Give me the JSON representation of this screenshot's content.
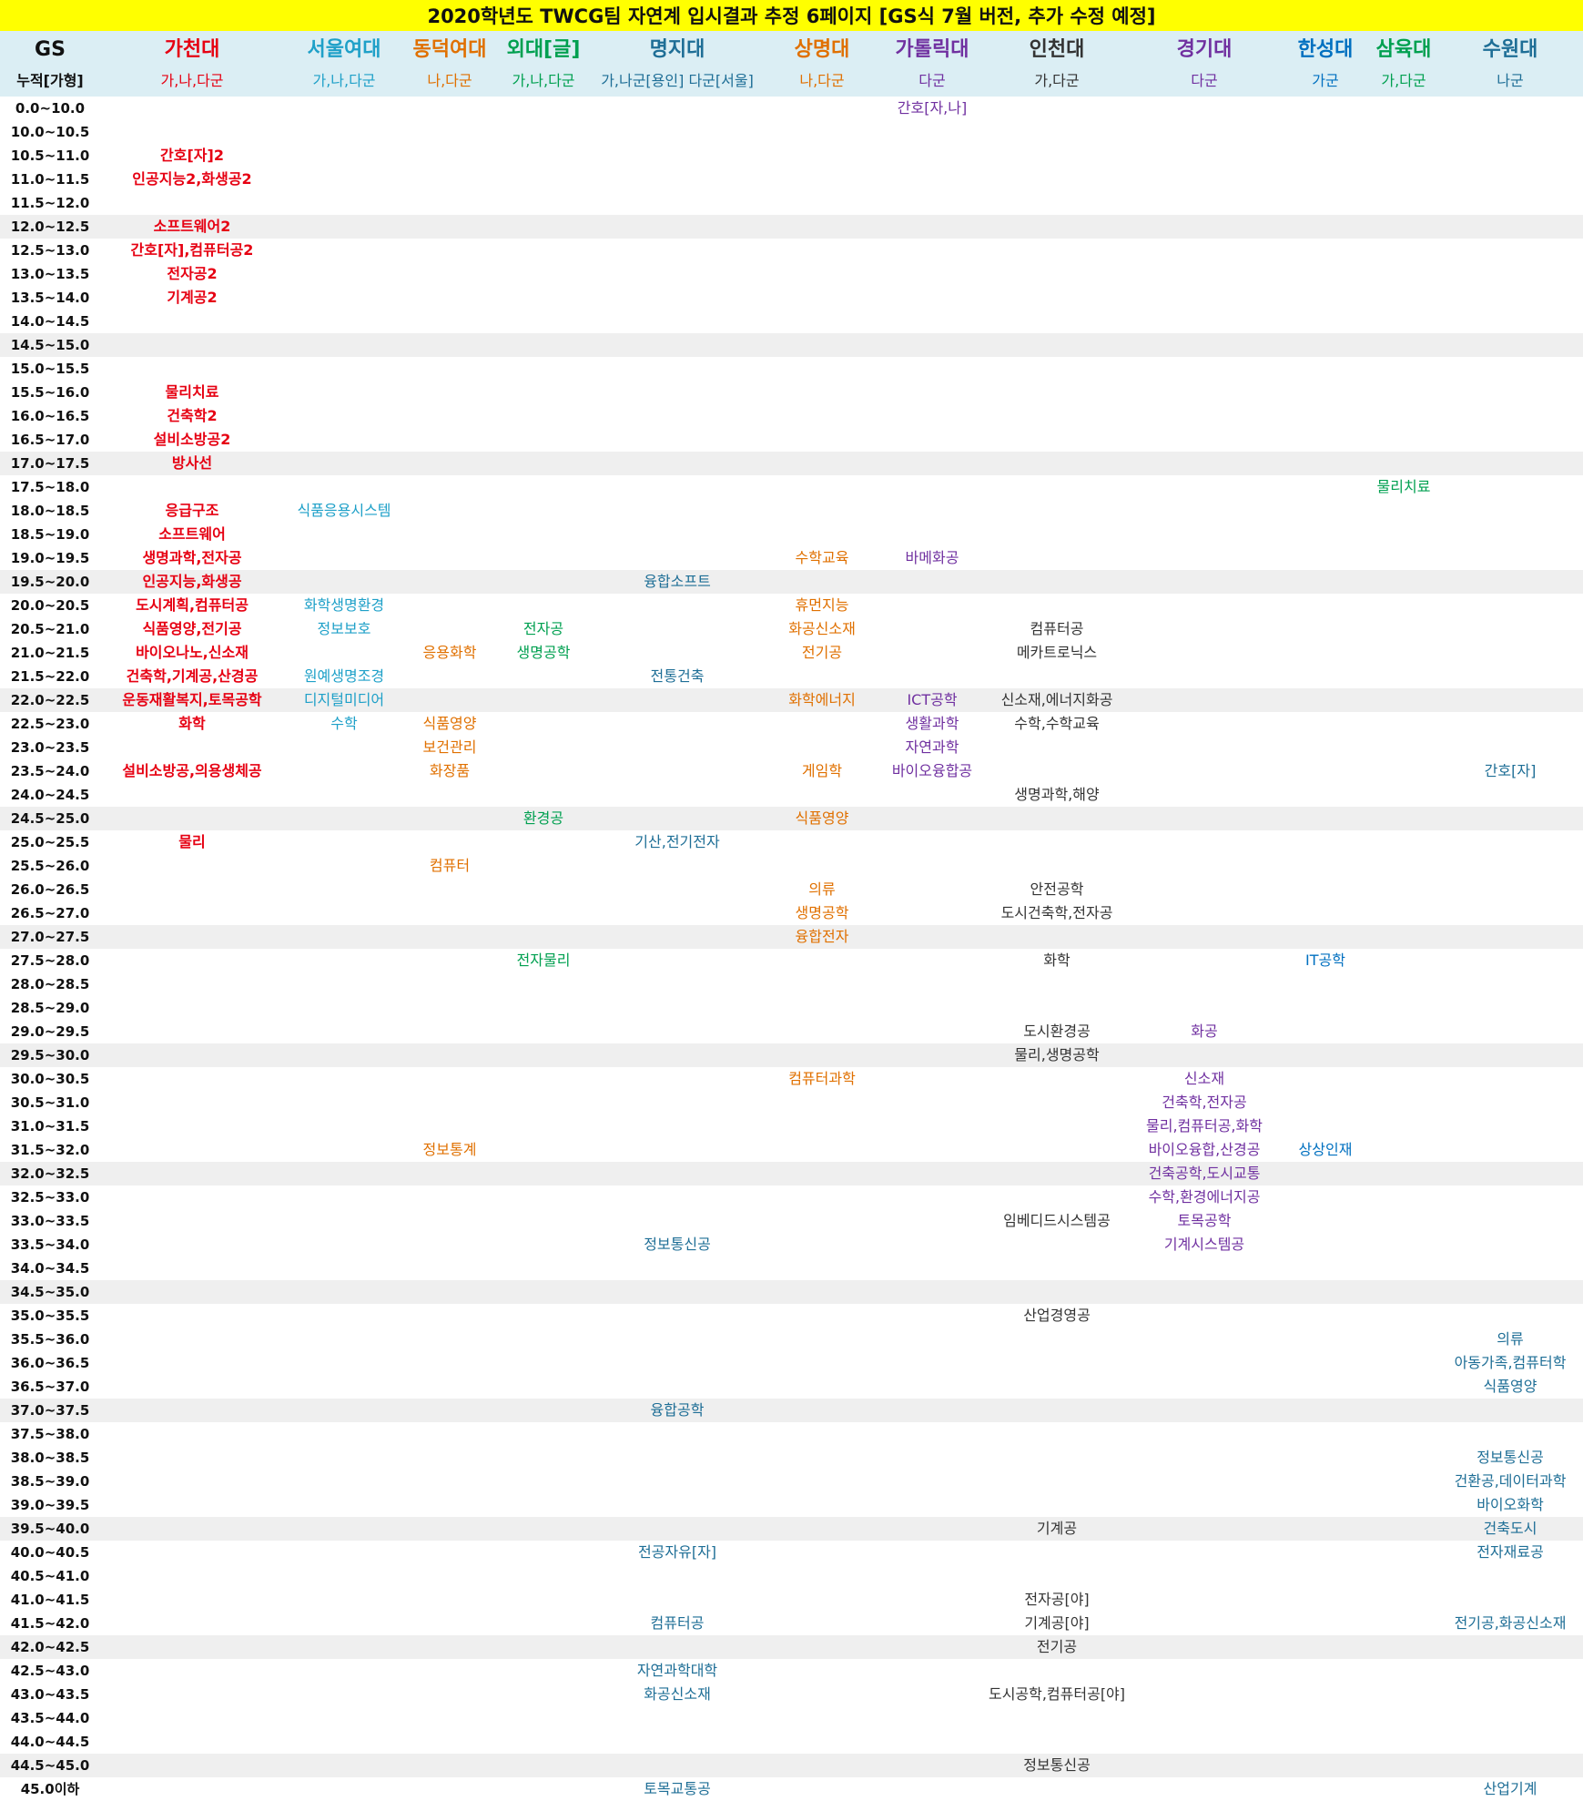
{
  "title": "2020학년도 TWCG팀 자연계 입시결과 추정 6페이지 [GS식 7월 버전, 추가 수정 예정]",
  "gs_header": {
    "label": "GS",
    "sub": "누적[가형]"
  },
  "universities": [
    {
      "key": "gachon",
      "name": "가천대",
      "groups": "가,나,다군",
      "color": "#e60012",
      "bold": true
    },
    {
      "key": "swu",
      "name": "서울여대",
      "groups": "가,나,다군",
      "color": "#1ea0c8",
      "bold": false
    },
    {
      "key": "dongduk",
      "name": "동덕여대",
      "groups": "나,다군",
      "color": "#e07000",
      "bold": false
    },
    {
      "key": "hufs",
      "name": "외대[글]",
      "groups": "가,나,다군",
      "color": "#00a050",
      "bold": false
    },
    {
      "key": "mju",
      "name": "명지대",
      "groups": "가,나군[용인] 다군[서울]",
      "color": "#1e6e96",
      "bold": false
    },
    {
      "key": "smu",
      "name": "상명대",
      "groups": "나,다군",
      "color": "#e07000",
      "bold": false
    },
    {
      "key": "cuk",
      "name": "가톨릭대",
      "groups": "다군",
      "color": "#7030a0",
      "bold": false
    },
    {
      "key": "inu",
      "name": "인천대",
      "groups": "가,다군",
      "color": "#333333",
      "bold": false
    },
    {
      "key": "kgu",
      "name": "경기대",
      "groups": "다군",
      "color": "#7030a0",
      "bold": false
    },
    {
      "key": "hansung",
      "name": "한성대",
      "groups": "가군",
      "color": "#0070c0",
      "bold": false
    },
    {
      "key": "sahmyook",
      "name": "삼육대",
      "groups": "가,다군",
      "color": "#00a050",
      "bold": false
    },
    {
      "key": "suwon",
      "name": "수원대",
      "groups": "나군",
      "color": "#1e6e96",
      "bold": false
    }
  ],
  "rows": [
    {
      "range": "0.0~10.0",
      "cells": {
        "cuk": "간호[자,나]"
      }
    },
    {
      "range": "10.0~10.5",
      "cells": {}
    },
    {
      "range": "10.5~11.0",
      "cells": {
        "gachon": "간호[자]2"
      }
    },
    {
      "range": "11.0~11.5",
      "cells": {
        "gachon": "인공지능2,화생공2"
      }
    },
    {
      "range": "11.5~12.0",
      "cells": {}
    },
    {
      "range": "12.0~12.5",
      "cells": {
        "gachon": "소프트웨어2"
      }
    },
    {
      "range": "12.5~13.0",
      "cells": {
        "gachon": "간호[자],컴퓨터공2"
      }
    },
    {
      "range": "13.0~13.5",
      "cells": {
        "gachon": "전자공2"
      }
    },
    {
      "range": "13.5~14.0",
      "cells": {
        "gachon": "기계공2"
      }
    },
    {
      "range": "14.0~14.5",
      "cells": {}
    },
    {
      "range": "14.5~15.0",
      "cells": {}
    },
    {
      "range": "15.0~15.5",
      "cells": {}
    },
    {
      "range": "15.5~16.0",
      "cells": {
        "gachon": "물리치료"
      }
    },
    {
      "range": "16.0~16.5",
      "cells": {
        "gachon": "건축학2"
      }
    },
    {
      "range": "16.5~17.0",
      "cells": {
        "gachon": "설비소방공2"
      }
    },
    {
      "range": "17.0~17.5",
      "cells": {
        "gachon": "방사선"
      }
    },
    {
      "range": "17.5~18.0",
      "cells": {
        "sahmyook": "물리치료"
      }
    },
    {
      "range": "18.0~18.5",
      "cells": {
        "gachon": "응급구조",
        "swu": "식품응용시스템"
      }
    },
    {
      "range": "18.5~19.0",
      "cells": {
        "gachon": "소프트웨어"
      }
    },
    {
      "range": "19.0~19.5",
      "cells": {
        "gachon": "생명과학,전자공",
        "smu": "수학교육",
        "cuk": "바메화공"
      }
    },
    {
      "range": "19.5~20.0",
      "cells": {
        "gachon": "인공지능,화생공",
        "mju": "융합소프트"
      }
    },
    {
      "range": "20.0~20.5",
      "cells": {
        "gachon": "도시계획,컴퓨터공",
        "swu": "화학생명환경",
        "smu": "휴먼지능"
      }
    },
    {
      "range": "20.5~21.0",
      "cells": {
        "gachon": "식품영양,전기공",
        "swu": "정보보호",
        "hufs": "전자공",
        "smu": "화공신소재",
        "inu": "컴퓨터공"
      }
    },
    {
      "range": "21.0~21.5",
      "cells": {
        "gachon": "바이오나노,신소재",
        "dongduk": "응용화학",
        "hufs": "생명공학",
        "smu": "전기공",
        "inu": "메카트로닉스"
      }
    },
    {
      "range": "21.5~22.0",
      "cells": {
        "gachon": "건축학,기계공,산경공",
        "swu": "원예생명조경",
        "mju": "전통건축"
      }
    },
    {
      "range": "22.0~22.5",
      "cells": {
        "gachon": "운동재활복지,토목공학",
        "swu": "디지털미디어",
        "smu": "화학에너지",
        "cuk": "ICT공학",
        "inu": "신소재,에너지화공"
      }
    },
    {
      "range": "22.5~23.0",
      "cells": {
        "gachon": "화학",
        "swu": "수학",
        "dongduk": "식품영양",
        "cuk": "생활과학",
        "inu": "수학,수학교육"
      }
    },
    {
      "range": "23.0~23.5",
      "cells": {
        "dongduk": "보건관리",
        "cuk": "자연과학"
      }
    },
    {
      "range": "23.5~24.0",
      "cells": {
        "gachon": "설비소방공,의용생체공",
        "dongduk": "화장품",
        "smu": "게임학",
        "cuk": "바이오융합공",
        "suwon": "간호[자]"
      }
    },
    {
      "range": "24.0~24.5",
      "cells": {
        "inu": "생명과학,해양"
      }
    },
    {
      "range": "24.5~25.0",
      "cells": {
        "hufs": "환경공",
        "smu": "식품영양"
      }
    },
    {
      "range": "25.0~25.5",
      "cells": {
        "gachon": "물리",
        "mju": "기산,전기전자"
      }
    },
    {
      "range": "25.5~26.0",
      "cells": {
        "dongduk": "컴퓨터"
      }
    },
    {
      "range": "26.0~26.5",
      "cells": {
        "smu": "의류",
        "inu": "안전공학"
      }
    },
    {
      "range": "26.5~27.0",
      "cells": {
        "smu": "생명공학",
        "inu": "도시건축학,전자공"
      }
    },
    {
      "range": "27.0~27.5",
      "cells": {
        "smu": "융합전자"
      }
    },
    {
      "range": "27.5~28.0",
      "cells": {
        "hufs": "전자물리",
        "inu": "화학",
        "hansung": "IT공학"
      }
    },
    {
      "range": "28.0~28.5",
      "cells": {}
    },
    {
      "range": "28.5~29.0",
      "cells": {}
    },
    {
      "range": "29.0~29.5",
      "cells": {
        "inu": "도시환경공",
        "kgu": "화공"
      }
    },
    {
      "range": "29.5~30.0",
      "cells": {
        "inu": "물리,생명공학"
      }
    },
    {
      "range": "30.0~30.5",
      "cells": {
        "smu": "컴퓨터과학",
        "kgu": "신소재"
      }
    },
    {
      "range": "30.5~31.0",
      "cells": {
        "kgu": "건축학,전자공"
      }
    },
    {
      "range": "31.0~31.5",
      "cells": {
        "kgu": "물리,컴퓨터공,화학"
      }
    },
    {
      "range": "31.5~32.0",
      "cells": {
        "dongduk": "정보통계",
        "kgu": "바이오융합,산경공",
        "hansung": "상상인재"
      }
    },
    {
      "range": "32.0~32.5",
      "cells": {
        "kgu": "건축공학,도시교통"
      }
    },
    {
      "range": "32.5~33.0",
      "cells": {
        "kgu": "수학,환경에너지공"
      }
    },
    {
      "range": "33.0~33.5",
      "cells": {
        "inu": "임베디드시스템공",
        "kgu": "토목공학"
      }
    },
    {
      "range": "33.5~34.0",
      "cells": {
        "mju": "정보통신공",
        "kgu": "기계시스템공"
      }
    },
    {
      "range": "34.0~34.5",
      "cells": {}
    },
    {
      "range": "34.5~35.0",
      "cells": {}
    },
    {
      "range": "35.0~35.5",
      "cells": {
        "inu": "산업경영공"
      }
    },
    {
      "range": "35.5~36.0",
      "cells": {
        "suwon": "의류"
      }
    },
    {
      "range": "36.0~36.5",
      "cells": {
        "suwon": "아동가족,컴퓨터학"
      }
    },
    {
      "range": "36.5~37.0",
      "cells": {
        "suwon": "식품영양"
      }
    },
    {
      "range": "37.0~37.5",
      "cells": {
        "mju": "융합공학"
      }
    },
    {
      "range": "37.5~38.0",
      "cells": {}
    },
    {
      "range": "38.0~38.5",
      "cells": {
        "suwon": "정보통신공"
      }
    },
    {
      "range": "38.5~39.0",
      "cells": {
        "suwon": "건환공,데이터과학"
      }
    },
    {
      "range": "39.0~39.5",
      "cells": {
        "suwon": "바이오화학"
      }
    },
    {
      "range": "39.5~40.0",
      "cells": {
        "inu": "기계공",
        "suwon": "건축도시"
      }
    },
    {
      "range": "40.0~40.5",
      "cells": {
        "mju": "전공자유[자]",
        "suwon": "전자재료공"
      }
    },
    {
      "range": "40.5~41.0",
      "cells": {}
    },
    {
      "range": "41.0~41.5",
      "cells": {
        "inu": "전자공[야]"
      }
    },
    {
      "range": "41.5~42.0",
      "cells": {
        "mju": "컴퓨터공",
        "inu": "기계공[야]",
        "suwon": "전기공,화공신소재"
      }
    },
    {
      "range": "42.0~42.5",
      "cells": {
        "inu": "전기공"
      }
    },
    {
      "range": "42.5~43.0",
      "cells": {
        "mju": "자연과학대학"
      }
    },
    {
      "range": "43.0~43.5",
      "cells": {
        "mju": "화공신소재",
        "inu": "도시공학,컴퓨터공[야]"
      }
    },
    {
      "range": "43.5~44.0",
      "cells": {}
    },
    {
      "range": "44.0~44.5",
      "cells": {}
    },
    {
      "range": "44.5~45.0",
      "cells": {
        "inu": "정보통신공"
      }
    },
    {
      "range": "45.0이하",
      "cells": {
        "mju": "토목교통공",
        "suwon": "산업기계"
      }
    }
  ]
}
